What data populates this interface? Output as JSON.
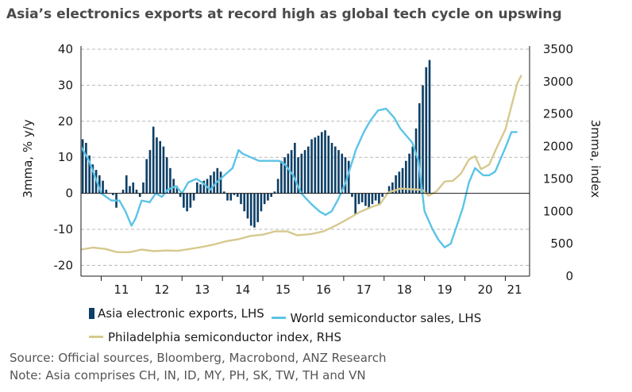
{
  "title": "Asia’s electronics exports at record high as global tech cycle on upswing",
  "legend": {
    "exports": "Asia electronic exports, LHS",
    "semis": "World semiconductor sales, LHS",
    "sox": "Philadelphia semiconductor index, RHS"
  },
  "source": "Source: Official sources, Bloomberg, Macrobond, ANZ Research",
  "note": "Note: Asia comprises CH, IN, ID, MY, PH, SK, TW, TH and VN",
  "colors": {
    "bars": "#0e3f66",
    "semis": "#5bc4e6",
    "sox": "#d6c98e",
    "grid": "#b8b8b8"
  },
  "chart_data": {
    "type": "bar",
    "x_domain": [
      2010.5,
      2021.6
    ],
    "x_ticks": [
      "11",
      "12",
      "13",
      "14",
      "15",
      "16",
      "17",
      "18",
      "19",
      "20",
      "21"
    ],
    "y_left": {
      "label": "3mma, % y/y",
      "lim": [
        -23,
        40
      ],
      "ticks": [
        -20,
        -10,
        0,
        10,
        20,
        30,
        40
      ]
    },
    "y_right": {
      "label": "3mma, index",
      "lim": [
        0,
        3500
      ],
      "ticks": [
        0,
        500,
        1000,
        1500,
        2000,
        2500,
        3000,
        3500
      ]
    },
    "grid": true,
    "legend_position": "bottom",
    "series": [
      {
        "name": "Asia electronic exports, LHS",
        "kind": "bar",
        "axis": "left",
        "x_start": 2010.5,
        "step_months": 1,
        "values": [
          15,
          14,
          10.5,
          8,
          6.5,
          5,
          3.5,
          1,
          0,
          -0.5,
          -4,
          0,
          1,
          5,
          2,
          3,
          1,
          -1,
          3,
          9.5,
          12,
          18.5,
          15.5,
          14.5,
          13,
          10,
          7,
          4,
          2,
          -1,
          -4,
          -5,
          -4,
          -2,
          3,
          2.5,
          3.5,
          4,
          5,
          6,
          7,
          6,
          0.5,
          -2,
          -2,
          -0.5,
          -1,
          -3,
          -5,
          -7,
          -9,
          -9.5,
          -8,
          -5,
          -3,
          -2,
          -1,
          0.5,
          4,
          9,
          10,
          11,
          12,
          14,
          10,
          11,
          12,
          13,
          15,
          15.5,
          16,
          17,
          17.5,
          16,
          14,
          13,
          12,
          11,
          10,
          9,
          -1,
          -6,
          -3,
          -2.5,
          -3.5,
          -4,
          -3,
          -2,
          -3,
          -1,
          0,
          2,
          3,
          5,
          6,
          7,
          9,
          11,
          13,
          18,
          25,
          30,
          35,
          37
        ]
      },
      {
        "name": "World semiconductor sales, LHS",
        "kind": "line",
        "axis": "left",
        "points": [
          [
            2010.5,
            13
          ],
          [
            2010.7,
            9
          ],
          [
            2010.9,
            3
          ],
          [
            2011.0,
            0
          ],
          [
            2011.25,
            -2
          ],
          [
            2011.45,
            -2
          ],
          [
            2011.6,
            -5
          ],
          [
            2011.75,
            -9
          ],
          [
            2011.85,
            -7
          ],
          [
            2012.0,
            -2
          ],
          [
            2012.2,
            -2.5
          ],
          [
            2012.35,
            0
          ],
          [
            2012.5,
            -1
          ],
          [
            2012.65,
            1
          ],
          [
            2012.85,
            2
          ],
          [
            2013.0,
            0
          ],
          [
            2013.15,
            3
          ],
          [
            2013.35,
            4
          ],
          [
            2013.5,
            3
          ],
          [
            2013.7,
            1
          ],
          [
            2013.85,
            3
          ],
          [
            2014.05,
            5
          ],
          [
            2014.25,
            7
          ],
          [
            2014.4,
            12
          ],
          [
            2014.5,
            11
          ],
          [
            2014.7,
            10
          ],
          [
            2014.9,
            9
          ],
          [
            2015.1,
            9
          ],
          [
            2015.4,
            9
          ],
          [
            2015.55,
            8
          ],
          [
            2015.75,
            5
          ],
          [
            2015.95,
            0
          ],
          [
            2016.2,
            -3
          ],
          [
            2016.4,
            -5
          ],
          [
            2016.55,
            -6
          ],
          [
            2016.7,
            -5
          ],
          [
            2016.85,
            -2
          ],
          [
            2017.05,
            3
          ],
          [
            2017.3,
            12
          ],
          [
            2017.5,
            17
          ],
          [
            2017.65,
            20
          ],
          [
            2017.85,
            23
          ],
          [
            2018.05,
            23.5
          ],
          [
            2018.25,
            21
          ],
          [
            2018.4,
            18
          ],
          [
            2018.55,
            16
          ],
          [
            2018.7,
            14
          ],
          [
            2018.85,
            9
          ],
          [
            2019.0,
            -5
          ],
          [
            2019.2,
            -10
          ],
          [
            2019.35,
            -13
          ],
          [
            2019.5,
            -15
          ],
          [
            2019.65,
            -14
          ],
          [
            2019.8,
            -9
          ],
          [
            2019.95,
            -4
          ],
          [
            2020.1,
            3
          ],
          [
            2020.25,
            7
          ],
          [
            2020.45,
            5
          ],
          [
            2020.6,
            5
          ],
          [
            2020.75,
            6
          ],
          [
            2020.9,
            10
          ],
          [
            2021.05,
            14
          ],
          [
            2021.15,
            17
          ],
          [
            2021.3,
            17
          ]
        ]
      },
      {
        "name": "Philadelphia semiconductor index, RHS",
        "kind": "line",
        "axis": "right",
        "points": [
          [
            2010.5,
            410
          ],
          [
            2010.8,
            440
          ],
          [
            2011.1,
            420
          ],
          [
            2011.4,
            370
          ],
          [
            2011.7,
            370
          ],
          [
            2012.0,
            410
          ],
          [
            2012.3,
            385
          ],
          [
            2012.6,
            395
          ],
          [
            2012.9,
            390
          ],
          [
            2013.2,
            420
          ],
          [
            2013.5,
            450
          ],
          [
            2013.8,
            490
          ],
          [
            2014.1,
            540
          ],
          [
            2014.4,
            570
          ],
          [
            2014.7,
            620
          ],
          [
            2015.0,
            640
          ],
          [
            2015.3,
            690
          ],
          [
            2015.6,
            690
          ],
          [
            2015.85,
            630
          ],
          [
            2016.2,
            650
          ],
          [
            2016.5,
            690
          ],
          [
            2016.8,
            780
          ],
          [
            2017.1,
            880
          ],
          [
            2017.4,
            990
          ],
          [
            2017.7,
            1070
          ],
          [
            2017.9,
            1110
          ],
          [
            2018.1,
            1290
          ],
          [
            2018.4,
            1350
          ],
          [
            2018.7,
            1340
          ],
          [
            2018.95,
            1330
          ],
          [
            2019.1,
            1240
          ],
          [
            2019.3,
            1310
          ],
          [
            2019.5,
            1460
          ],
          [
            2019.7,
            1470
          ],
          [
            2019.9,
            1580
          ],
          [
            2020.1,
            1800
          ],
          [
            2020.25,
            1850
          ],
          [
            2020.4,
            1650
          ],
          [
            2020.6,
            1720
          ],
          [
            2020.8,
            2000
          ],
          [
            2021.0,
            2260
          ],
          [
            2021.15,
            2620
          ],
          [
            2021.3,
            2980
          ],
          [
            2021.4,
            3100
          ]
        ]
      }
    ]
  }
}
